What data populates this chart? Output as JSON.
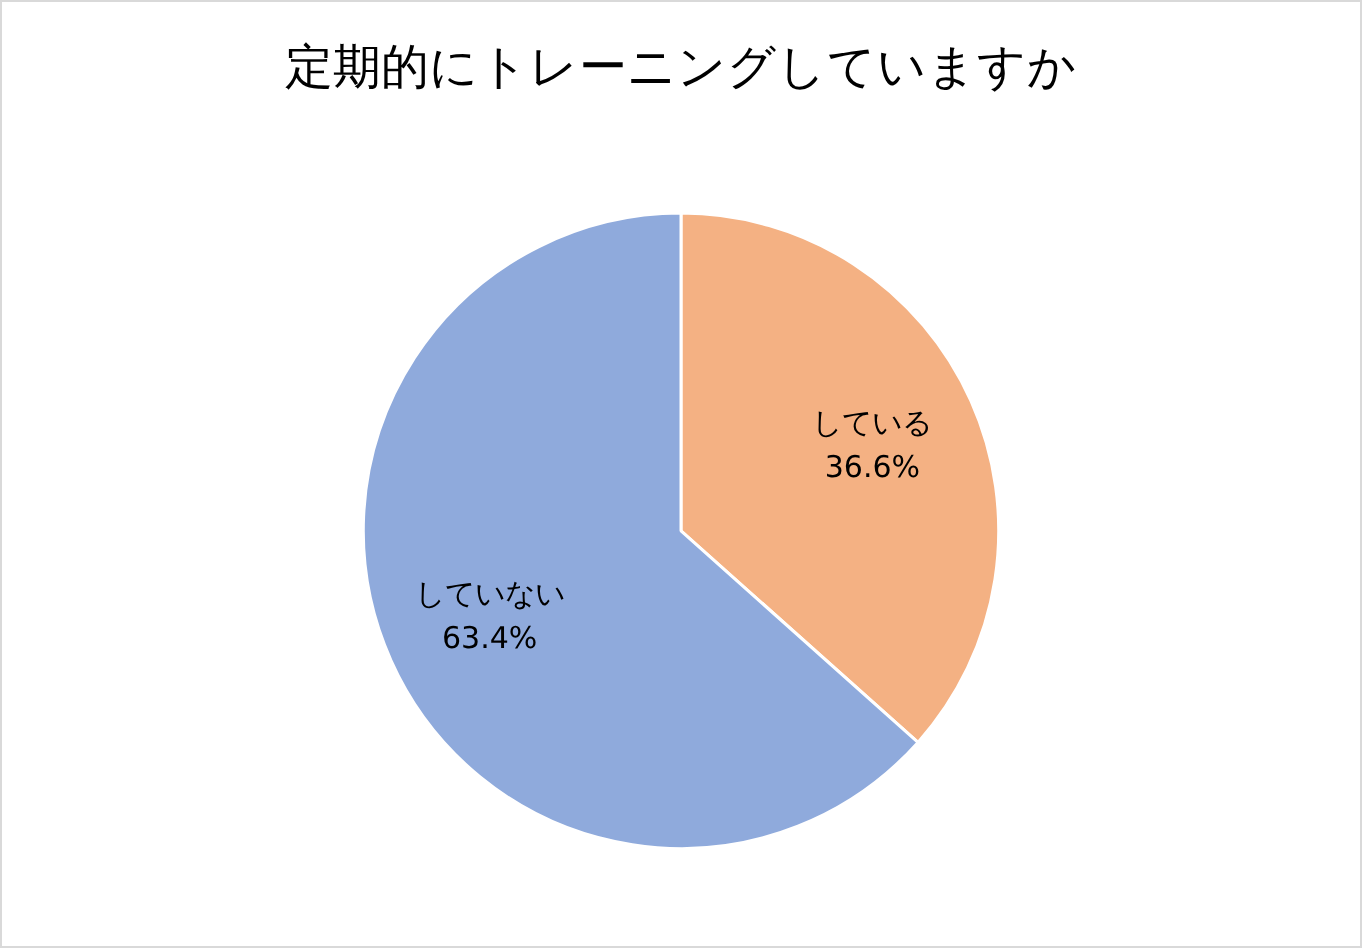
{
  "chart_data": {
    "type": "pie",
    "title": "定期的にトレーニングしていますか",
    "categories": [
      "している",
      "していない"
    ],
    "values": [
      36.6,
      63.4
    ],
    "colors": [
      "#f4b183",
      "#8faadc"
    ],
    "value_labels": [
      "36.6%",
      "63.4%"
    ],
    "legend": false
  }
}
